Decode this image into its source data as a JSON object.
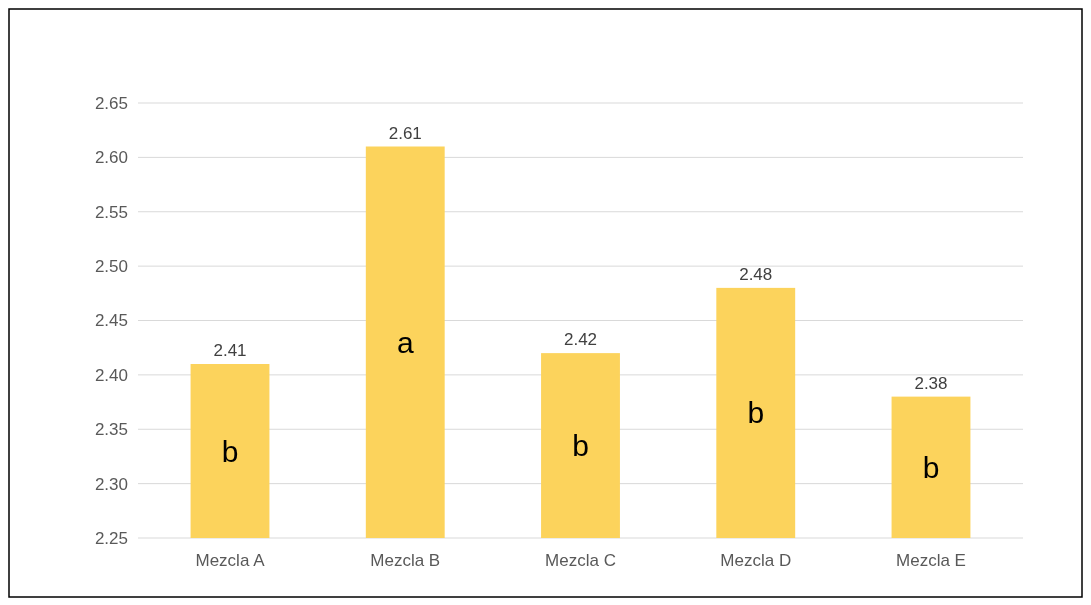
{
  "chart_data": {
    "type": "bar",
    "categories": [
      "Mezcla A",
      "Mezcla B",
      "Mezcla C",
      "Mezcla D",
      "Mezcla E"
    ],
    "values": [
      2.41,
      2.61,
      2.42,
      2.48,
      2.38
    ],
    "color": "#fcd35c",
    "ylim": [
      2.25,
      2.65
    ],
    "yticks": [
      2.25,
      {
        "value": 2.3,
        "label": "2.30"
      },
      2.35,
      {
        "value": 2.4,
        "label": "2.40"
      },
      2.45,
      {
        "value": 2.5,
        "label": "2.50"
      },
      2.55,
      {
        "value": 2.6,
        "label": "2.60"
      },
      2.65
    ],
    "grid": "y",
    "data_labels": true,
    "annotations": [
      "b",
      "a",
      "b",
      "b",
      "b"
    ]
  }
}
